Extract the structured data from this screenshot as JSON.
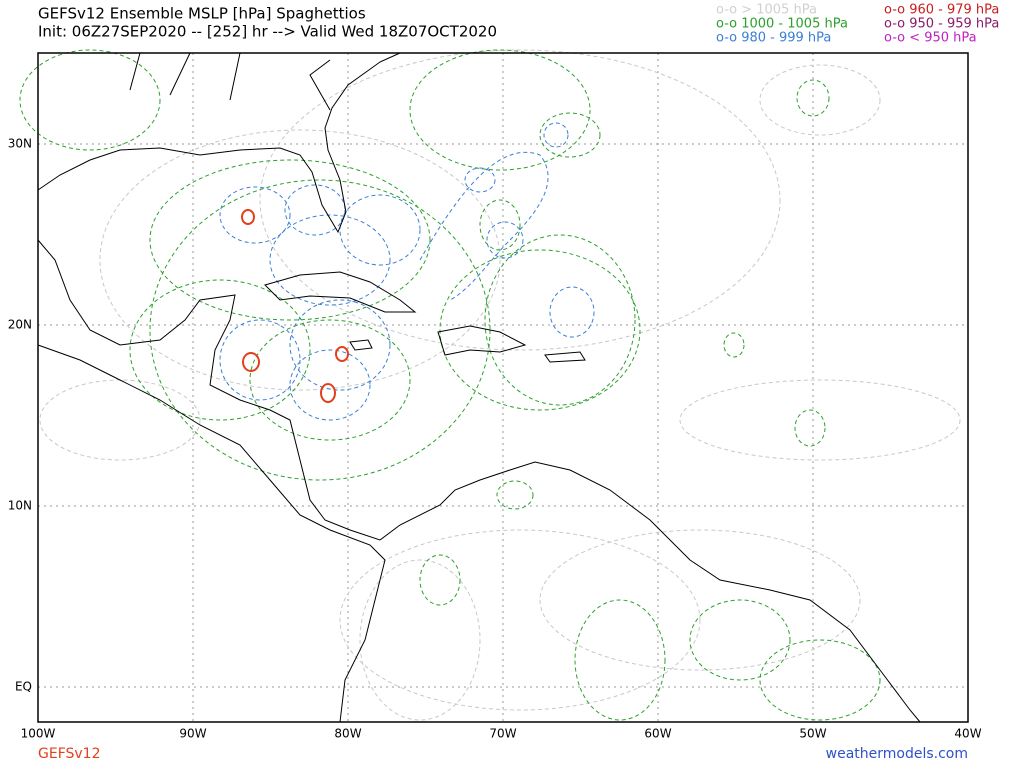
{
  "header": {
    "title": "GEFSv12 Ensemble MSLP [hPa] Spaghettios",
    "subtitle": "Init: 06Z27SEP2020 -- [252] hr --> Valid Wed 18Z07OCT2020"
  },
  "legend": [
    {
      "label": "o-o > 1005 hPa",
      "color": "#d0d0d0"
    },
    {
      "label": "o-o 1000 - 1005 hPa",
      "color": "#2ca02c"
    },
    {
      "label": "o-o 980 - 999 hPa",
      "color": "#3a7fd5"
    },
    {
      "label": "o-o 960 - 979 hPa",
      "color": "#c81e1e"
    },
    {
      "label": "o-o 950 - 959 hPa",
      "color": "#8b1a6b"
    },
    {
      "label": "o-o < 950 hPa",
      "color": "#c020c0"
    }
  ],
  "lon_labels": [
    "100W",
    "90W",
    "80W",
    "70W",
    "60W",
    "50W",
    "40W"
  ],
  "lat_labels": [
    "30N",
    "20N",
    "10N",
    "EQ"
  ],
  "footer": {
    "model": "GEFSv12",
    "site": "weathermodels.com"
  }
}
